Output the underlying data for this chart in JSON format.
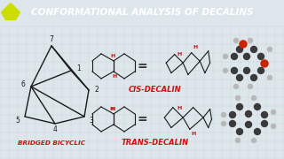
{
  "title": "CONFORMATIONAL ANALYSIS OF DECALINS",
  "title_bg": "#2b3035",
  "title_color": "#ffffff",
  "bg_color": "#dde6ea",
  "grid_color": "#b8cdd4",
  "label_cis": "CIS-DECALIN",
  "label_trans": "TRANS-DECALIN",
  "label_bridged": "BRIDGED BICYCLIC",
  "label_color_red": "#cc1111",
  "line_color": "#1a1a1a",
  "h_color": "#cc1111",
  "atom_dark": "#3a3a3a",
  "atom_dark2": "#555555",
  "atom_red": "#cc2200",
  "atom_light": "#b8b8b8",
  "atom_light2": "#d8d8d8",
  "equals_color": "#333333"
}
